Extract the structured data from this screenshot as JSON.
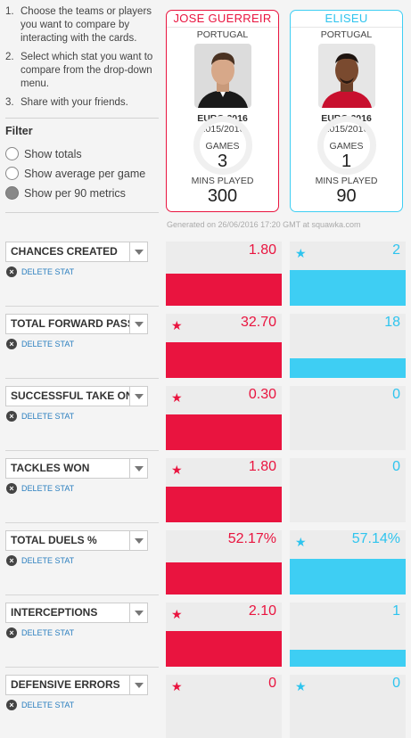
{
  "instructions": [
    {
      "num": "1.",
      "text": "Choose the teams or players you want to compare by interacting with the cards."
    },
    {
      "num": "2.",
      "text": "Select which stat you want to compare from the drop-down menu."
    },
    {
      "num": "3.",
      "text": "Share with your friends."
    }
  ],
  "filter": {
    "title": "Filter",
    "options": [
      {
        "label": "Show totals",
        "selected": false
      },
      {
        "label": "Show average per game",
        "selected": false
      },
      {
        "label": "Show per 90 metrics",
        "selected": true
      }
    ]
  },
  "players": [
    {
      "name": "JOSE GUERREIR",
      "country": "PORTUGAL",
      "competition": "EURO 2016",
      "season": "2015/2016",
      "games_label": "GAMES",
      "games": "3",
      "mins_label": "MINS PLAYED",
      "mins": "300",
      "color": "#e9143f"
    },
    {
      "name": "ELISEU",
      "country": "PORTUGAL",
      "competition": "EURO 2016",
      "season": "2015/2016",
      "games_label": "GAMES",
      "games": "1",
      "mins_label": "MINS PLAYED",
      "mins": "90",
      "color": "#3ecef3"
    }
  ],
  "generated": "Generated on 26/06/2016 17:20 GMT at squawka.com",
  "delete_label": "DELETE STAT",
  "stats": [
    {
      "label": "CHANCES CREATED",
      "p1": "1.80",
      "p2": "2",
      "p1_star": false,
      "p2_star": true,
      "p1_fill": 0.9,
      "p2_fill": 1.0
    },
    {
      "label": "TOTAL FORWARD PASSES",
      "p1": "32.70",
      "p2": "18",
      "p1_star": true,
      "p2_star": false,
      "p1_fill": 1.0,
      "p2_fill": 0.55
    },
    {
      "label": "SUCCESSFUL TAKE ONS",
      "p1": "0.30",
      "p2": "0",
      "p1_star": true,
      "p2_star": false,
      "p1_fill": 1.0,
      "p2_fill": 0.0
    },
    {
      "label": "TACKLES WON",
      "p1": "1.80",
      "p2": "0",
      "p1_star": true,
      "p2_star": false,
      "p1_fill": 1.0,
      "p2_fill": 0.0
    },
    {
      "label": "TOTAL DUELS %",
      "p1": "52.17%",
      "p2": "57.14%",
      "p1_star": false,
      "p2_star": true,
      "p1_fill": 0.91,
      "p2_fill": 1.0
    },
    {
      "label": "INTERCEPTIONS",
      "p1": "2.10",
      "p2": "1",
      "p1_star": true,
      "p2_star": false,
      "p1_fill": 1.0,
      "p2_fill": 0.476
    },
    {
      "label": "DEFENSIVE ERRORS",
      "p1": "0",
      "p2": "0",
      "p1_star": true,
      "p2_star": true,
      "p1_fill": 0.0,
      "p2_fill": 0.0
    }
  ]
}
